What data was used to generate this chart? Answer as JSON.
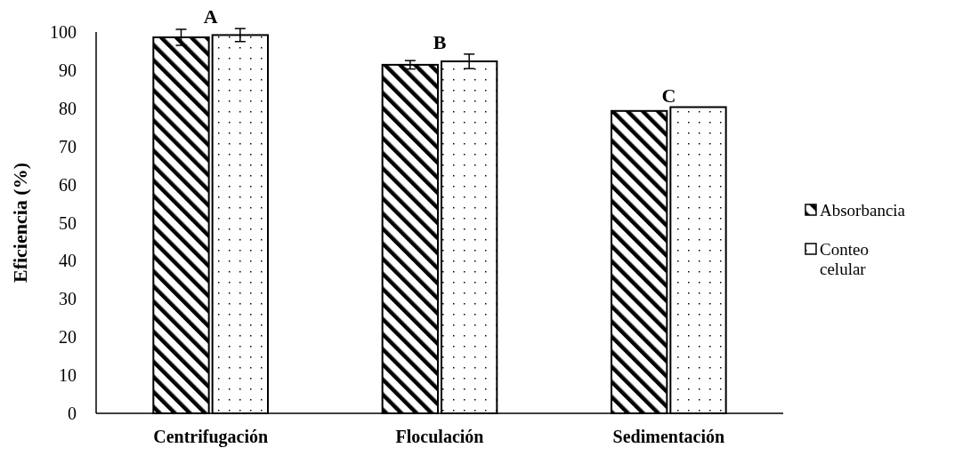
{
  "chart_data": {
    "type": "bar",
    "ylabel": "Eficiencia (%)",
    "categories": [
      "Centrifugación",
      "Floculación",
      "Sedimentación"
    ],
    "series": [
      {
        "name": "Absorbancia",
        "color": "#000000",
        "values": [
          98.6,
          91.4,
          79.3
        ],
        "errors": [
          2.1,
          1.1,
          null
        ]
      },
      {
        "name": "Conteo celular",
        "color": "#000000",
        "values": [
          99.2,
          92.3,
          80.3
        ],
        "errors": [
          1.7,
          1.9,
          null
        ]
      }
    ],
    "ylim": [
      0,
      100
    ],
    "yticks": [
      0,
      10,
      20,
      30,
      40,
      50,
      60,
      70,
      80,
      90,
      100
    ],
    "grid": false,
    "legend": "right",
    "annotations": [
      "A",
      "B",
      "C"
    ]
  }
}
